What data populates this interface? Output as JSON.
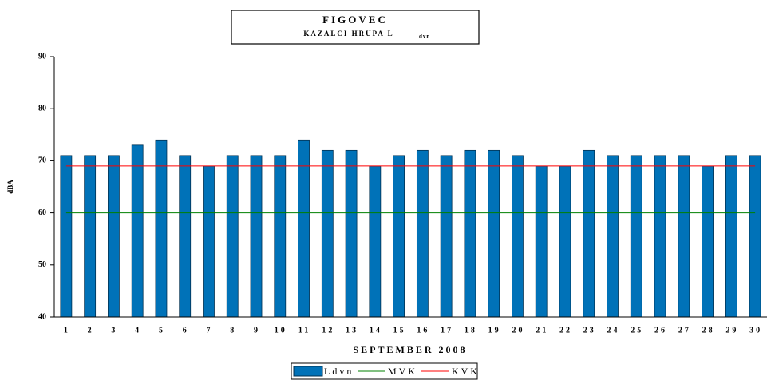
{
  "chart_data": {
    "type": "bar",
    "title": "FIGOVEC",
    "subtitle": "KAZALCI HRUPA L",
    "subtitle_subscript": "dvn",
    "x_label": "SEPTEMBER 2008",
    "y_label": "dBA",
    "categories": [
      "1",
      "2",
      "3",
      "4",
      "5",
      "6",
      "7",
      "8",
      "9",
      "10",
      "11",
      "12",
      "13",
      "14",
      "15",
      "16",
      "17",
      "18",
      "19",
      "20",
      "21",
      "22",
      "23",
      "24",
      "25",
      "26",
      "27",
      "28",
      "29",
      "30"
    ],
    "series": [
      {
        "name": "Ldvn",
        "type": "bar",
        "color": "#0072b8",
        "values": [
          71,
          71,
          71,
          73,
          74,
          71,
          69,
          71,
          71,
          71,
          74,
          72,
          72,
          69,
          71,
          72,
          71,
          72,
          72,
          71,
          69,
          69,
          72,
          71,
          71,
          71,
          71,
          69,
          71,
          71
        ]
      },
      {
        "name": "MVK",
        "type": "line",
        "color": "#008000",
        "values": [
          60,
          60,
          60,
          60,
          60,
          60,
          60,
          60,
          60,
          60,
          60,
          60,
          60,
          60,
          60,
          60,
          60,
          60,
          60,
          60,
          60,
          60,
          60,
          60,
          60,
          60,
          60,
          60,
          60,
          60
        ]
      },
      {
        "name": "KVK",
        "type": "line",
        "color": "#ff0000",
        "values": [
          69,
          69,
          69,
          69,
          69,
          69,
          69,
          69,
          69,
          69,
          69,
          69,
          69,
          69,
          69,
          69,
          69,
          69,
          69,
          69,
          69,
          69,
          69,
          69,
          69,
          69,
          69,
          69,
          69,
          69
        ]
      }
    ],
    "ylim": [
      40,
      90
    ],
    "yticks": [
      40,
      50,
      60,
      70,
      80,
      90
    ],
    "grid": false
  }
}
